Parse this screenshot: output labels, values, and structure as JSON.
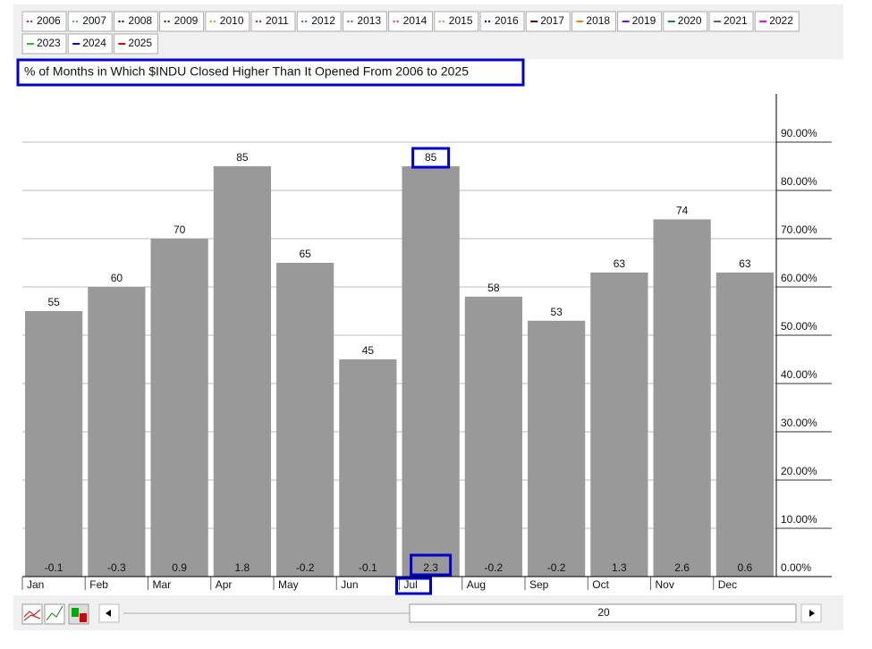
{
  "toolbar": {
    "legend": [
      {
        "label": "2006",
        "color": "#d000d0",
        "style": "dotted"
      },
      {
        "label": "2007",
        "color": "#20c020",
        "style": "dotted"
      },
      {
        "label": "2008",
        "color": "#000080",
        "style": "dotted"
      },
      {
        "label": "2009",
        "color": "#800000",
        "style": "dotted"
      },
      {
        "label": "2010",
        "color": "#ff8000",
        "style": "dotted"
      },
      {
        "label": "2011",
        "color": "#c000c0",
        "style": "dotted"
      },
      {
        "label": "2012",
        "color": "#008080",
        "style": "dotted"
      },
      {
        "label": "2013",
        "color": "#606060",
        "style": "dotted"
      },
      {
        "label": "2014",
        "color": "#ff00ff",
        "style": "dotted"
      },
      {
        "label": "2015",
        "color": "#40e040",
        "style": "dotted"
      },
      {
        "label": "2016",
        "color": "#000080",
        "style": "dotted"
      },
      {
        "label": "2017",
        "color": "#800000",
        "style": "solid"
      },
      {
        "label": "2018",
        "color": "#ff8000",
        "style": "solid"
      },
      {
        "label": "2019",
        "color": "#8000ff",
        "style": "solid"
      },
      {
        "label": "2020",
        "color": "#008080",
        "style": "solid"
      },
      {
        "label": "2021",
        "color": "#606060",
        "style": "solid"
      },
      {
        "label": "2022",
        "color": "#ff00ff",
        "style": "solid"
      },
      {
        "label": "2023",
        "color": "#20c020",
        "style": "solid"
      },
      {
        "label": "2024",
        "color": "#0000c0",
        "style": "solid"
      },
      {
        "label": "2025",
        "color": "#e00000",
        "style": "solid"
      }
    ],
    "scroll_value": 20
  },
  "chart_data": {
    "type": "bar",
    "title": "% of Months in Which $INDU Closed Higher Than It Opened From 2006 to 2025",
    "categories": [
      "Jan",
      "Feb",
      "Mar",
      "Apr",
      "May",
      "Jun",
      "Jul",
      "Aug",
      "Sep",
      "Oct",
      "Nov",
      "Dec"
    ],
    "values": [
      55,
      60,
      70,
      85,
      65,
      45,
      85,
      58,
      53,
      63,
      74,
      63
    ],
    "bottom_labels": [
      -0.1,
      -0.3,
      0.9,
      1.8,
      -0.2,
      -0.1,
      2.3,
      -0.2,
      -0.2,
      1.3,
      2.6,
      0.6
    ],
    "color": "#999999",
    "highlight": "Jul",
    "ylim": [
      0,
      100
    ],
    "yticks": [
      {
        "value": 0,
        "label": "0.00%"
      },
      {
        "value": 10,
        "label": "10.00%"
      },
      {
        "value": 20,
        "label": "20.00%"
      },
      {
        "value": 30,
        "label": "30.00%"
      },
      {
        "value": 40,
        "label": "40.00%"
      },
      {
        "value": 50,
        "label": "50.00%"
      },
      {
        "value": 60,
        "label": "60.00%"
      },
      {
        "value": 70,
        "label": "70.00%"
      },
      {
        "value": 80,
        "label": "80.00%"
      },
      {
        "value": 90,
        "label": "90.00%"
      }
    ],
    "grid": true
  }
}
